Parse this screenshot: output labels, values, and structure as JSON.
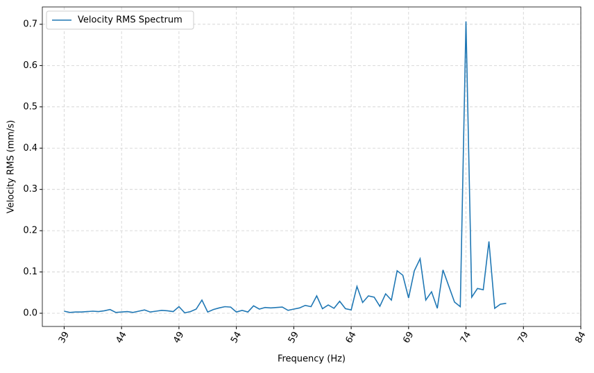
{
  "chart_data": {
    "type": "line",
    "xlabel": "Frequency (Hz)",
    "ylabel": "Velocity RMS (mm/s)",
    "x": [
      39,
      39.5,
      40,
      40.5,
      41,
      41.5,
      42,
      42.5,
      43,
      43.5,
      44,
      44.5,
      45,
      45.5,
      46,
      46.5,
      47,
      47.5,
      48,
      48.5,
      49,
      49.5,
      50,
      50.5,
      51,
      51.5,
      52,
      52.5,
      53,
      53.5,
      54,
      54.5,
      55,
      55.5,
      56,
      56.5,
      57,
      57.5,
      58,
      58.5,
      59,
      59.5,
      60,
      60.5,
      61,
      61.5,
      62,
      62.5,
      63,
      63.5,
      64,
      64.5,
      65,
      65.5,
      66,
      66.5,
      67,
      67.5,
      68,
      68.5,
      69,
      69.5,
      70,
      70.5,
      71,
      71.5,
      72,
      72.5,
      73,
      73.5,
      74,
      74.5,
      75,
      75.5,
      76,
      76.5,
      77,
      77.5
    ],
    "series": [
      {
        "name": "Velocity RMS Spectrum",
        "color": "#1f77b4",
        "values": [
          0.005,
          0.002,
          0.003,
          0.003,
          0.004,
          0.005,
          0.004,
          0.006,
          0.009,
          0.002,
          0.003,
          0.004,
          0.002,
          0.005,
          0.008,
          0.003,
          0.005,
          0.007,
          0.006,
          0.004,
          0.016,
          0.001,
          0.004,
          0.01,
          0.032,
          0.003,
          0.009,
          0.013,
          0.016,
          0.015,
          0.003,
          0.007,
          0.003,
          0.018,
          0.01,
          0.014,
          0.013,
          0.014,
          0.015,
          0.007,
          0.01,
          0.013,
          0.019,
          0.016,
          0.042,
          0.011,
          0.02,
          0.012,
          0.029,
          0.011,
          0.008,
          0.065,
          0.026,
          0.042,
          0.039,
          0.017,
          0.047,
          0.032,
          0.103,
          0.092,
          0.037,
          0.103,
          0.132,
          0.032,
          0.052,
          0.012,
          0.105,
          0.066,
          0.027,
          0.016,
          0.707,
          0.039,
          0.06,
          0.057,
          0.174,
          0.012,
          0.022,
          0.024
        ]
      }
    ],
    "xlim": [
      37.1,
      84
    ],
    "xticks": [
      39,
      44,
      49,
      54,
      59,
      64,
      69,
      74,
      79,
      84
    ],
    "ylim": [
      -0.032,
      0.742
    ],
    "yticks": [
      {
        "value": 0,
        "label": "0.0"
      },
      0.1,
      0.2,
      0.3,
      0.4,
      0.5,
      0.6,
      0.7
    ],
    "grid": true,
    "legend": "upper-left"
  }
}
